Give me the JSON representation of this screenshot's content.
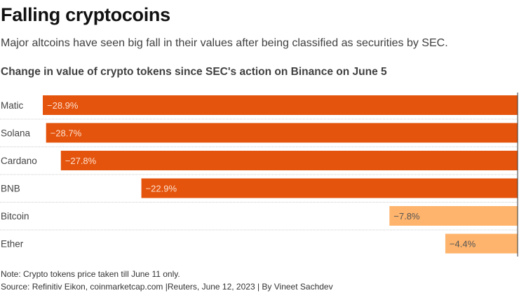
{
  "header": {
    "title": "Falling cryptocoins",
    "subtitle": "Major altcoins have seen big fall in their values after being classified as securities by SEC."
  },
  "chart_data": {
    "type": "bar",
    "orientation": "horizontal",
    "title": "Change in value of crypto tokens since SEC's action on Binance on June 5",
    "categories": [
      "Matic",
      "Solana",
      "Cardano",
      "BNB",
      "Bitcoin",
      "Ether"
    ],
    "values": [
      -28.9,
      -28.7,
      -27.8,
      -22.9,
      -7.8,
      -4.4
    ],
    "labels": [
      "−28.9%",
      "−28.7%",
      "−27.8%",
      "−22.9%",
      "−7.8%",
      "−4.4%"
    ],
    "colors": [
      "#e4540d",
      "#e4540d",
      "#e4540d",
      "#e4540d",
      "#feb46c",
      "#feb46c"
    ],
    "xlim": [
      -28.9,
      0
    ],
    "grid": false
  },
  "footer": {
    "note": "Note: Crypto tokens price taken till June 11 only.",
    "source": "Source: Refinitiv Eikon, coinmarketcap.com |Reuters, June 12, 2023 | By Vineet Sachdev"
  }
}
